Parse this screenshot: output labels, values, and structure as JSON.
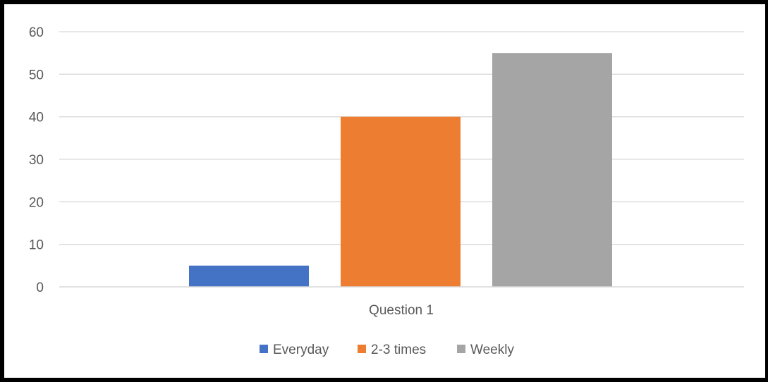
{
  "chart_data": {
    "type": "bar",
    "categories": [
      "Question 1"
    ],
    "series": [
      {
        "name": "Everyday",
        "values": [
          5
        ],
        "color": "#4472C4"
      },
      {
        "name": "2-3 times",
        "values": [
          40
        ],
        "color": "#ED7D31"
      },
      {
        "name": "Weekly",
        "values": [
          55
        ],
        "color": "#A5A5A5"
      }
    ],
    "ylim": [
      0,
      60
    ],
    "yticks": [
      "0",
      "10",
      "20",
      "30",
      "40",
      "50",
      "60"
    ],
    "grid": true,
    "legend_position": "bottom",
    "gridline_color": "#D9D9D9",
    "axis_color": "#D9D9D9"
  }
}
